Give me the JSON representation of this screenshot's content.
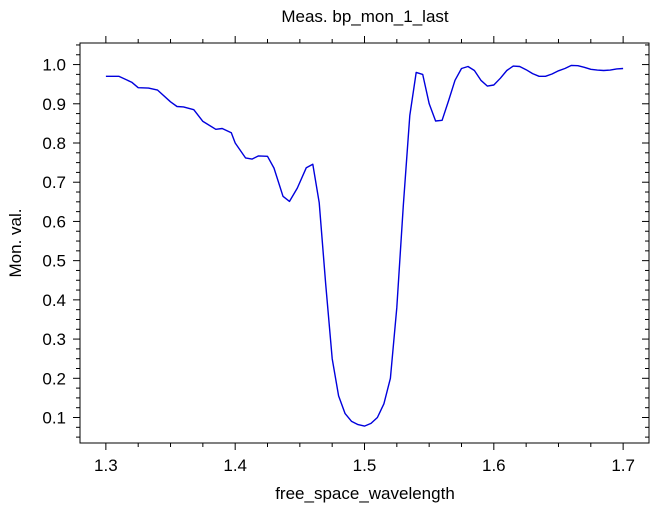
{
  "chart_data": {
    "type": "line",
    "title": "Meas. bp_mon_1_last",
    "xlabel": "free_space_wavelength",
    "ylabel": "Mon. val.",
    "xlim": [
      1.28,
      1.72
    ],
    "ylim": [
      0.035,
      1.055
    ],
    "xticks": [
      1.3,
      1.4,
      1.5,
      1.6,
      1.7
    ],
    "xtick_labels": [
      "1.3",
      "1.4",
      "1.5",
      "1.6",
      "1.7"
    ],
    "yticks": [
      0.1,
      0.2,
      0.3,
      0.4,
      0.5,
      0.6,
      0.7,
      0.8,
      0.9,
      1.0
    ],
    "ytick_labels": [
      "0.1",
      "0.2",
      "0.3",
      "0.4",
      "0.5",
      "0.6",
      "0.7",
      "0.8",
      "0.9",
      "1.0"
    ],
    "grid": false,
    "line_color": "#0000dd",
    "series": [
      {
        "name": "bp_mon_1_last",
        "x": [
          1.3,
          1.31,
          1.32,
          1.325,
          1.333,
          1.34,
          1.35,
          1.355,
          1.36,
          1.368,
          1.375,
          1.385,
          1.39,
          1.397,
          1.4,
          1.408,
          1.413,
          1.418,
          1.425,
          1.43,
          1.437,
          1.442,
          1.448,
          1.455,
          1.46,
          1.465,
          1.47,
          1.475,
          1.48,
          1.485,
          1.49,
          1.495,
          1.5,
          1.505,
          1.51,
          1.515,
          1.52,
          1.525,
          1.53,
          1.535,
          1.54,
          1.545,
          1.55,
          1.555,
          1.56,
          1.565,
          1.57,
          1.575,
          1.58,
          1.585,
          1.59,
          1.595,
          1.6,
          1.605,
          1.61,
          1.615,
          1.62,
          1.625,
          1.63,
          1.635,
          1.64,
          1.645,
          1.65,
          1.655,
          1.66,
          1.665,
          1.67,
          1.675,
          1.68,
          1.685,
          1.69,
          1.695,
          1.7
        ],
        "y": [
          0.97,
          0.97,
          0.955,
          0.941,
          0.94,
          0.935,
          0.905,
          0.893,
          0.892,
          0.885,
          0.855,
          0.835,
          0.837,
          0.826,
          0.8,
          0.762,
          0.759,
          0.767,
          0.766,
          0.736,
          0.664,
          0.651,
          0.685,
          0.737,
          0.746,
          0.648,
          0.44,
          0.25,
          0.155,
          0.11,
          0.09,
          0.082,
          0.078,
          0.085,
          0.1,
          0.135,
          0.2,
          0.38,
          0.64,
          0.87,
          0.98,
          0.975,
          0.9,
          0.856,
          0.858,
          0.908,
          0.96,
          0.99,
          0.995,
          0.985,
          0.96,
          0.945,
          0.948,
          0.965,
          0.985,
          0.996,
          0.995,
          0.987,
          0.977,
          0.97,
          0.97,
          0.976,
          0.984,
          0.99,
          0.998,
          0.997,
          0.993,
          0.988,
          0.986,
          0.985,
          0.986,
          0.989,
          0.99
        ]
      }
    ]
  }
}
